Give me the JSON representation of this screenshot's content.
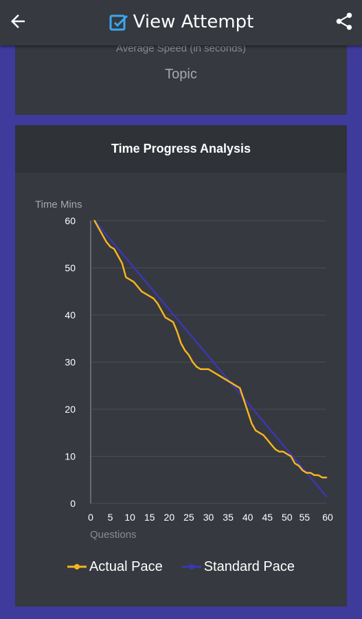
{
  "appbar": {
    "title": "View Attempt",
    "back_icon": "arrow-left-icon",
    "title_icon": "edit-square-icon",
    "share_icon": "share-icon"
  },
  "summary_card": {
    "avg_speed_label": "Average Speed (in seconds)",
    "topic_label": "Topic"
  },
  "chart_card": {
    "title": "Time Progress Analysis"
  },
  "colors": {
    "actual": "#f5b51f",
    "standard": "#3b37b0",
    "title_icon": "#3aa8f0"
  },
  "chart_data": {
    "type": "line",
    "title": "Time Progress Analysis",
    "xlabel": "Questions",
    "ylabel": "Time Mins",
    "xlim": [
      0,
      60
    ],
    "ylim": [
      0,
      60
    ],
    "x_ticks": [
      0,
      5,
      10,
      15,
      20,
      25,
      30,
      35,
      40,
      45,
      50,
      55,
      60
    ],
    "y_ticks": [
      0,
      10,
      20,
      30,
      40,
      50,
      60
    ],
    "grid": true,
    "legend_position": "bottom",
    "series": [
      {
        "name": "Actual Pace",
        "color": "#f5b51f",
        "x": [
          1,
          2,
          3,
          4,
          5,
          6,
          7,
          8,
          9,
          10,
          11,
          12,
          13,
          14,
          15,
          16,
          17,
          18,
          19,
          20,
          21,
          22,
          23,
          24,
          25,
          26,
          27,
          28,
          29,
          30,
          31,
          32,
          33,
          34,
          35,
          36,
          37,
          38,
          39,
          40,
          41,
          42,
          43,
          44,
          45,
          46,
          47,
          48,
          49,
          50,
          51,
          52,
          53,
          54,
          55,
          56,
          57,
          58,
          59,
          60
        ],
        "y": [
          60,
          58.5,
          57,
          55.5,
          54.5,
          54,
          52.5,
          51,
          48,
          47.5,
          47,
          46,
          45,
          44.5,
          44,
          43.5,
          42.5,
          41,
          39.5,
          39,
          38.5,
          36.5,
          34,
          32.5,
          31.5,
          30,
          29,
          28.5,
          28.5,
          28.5,
          28,
          27.5,
          27,
          26.5,
          26,
          25.5,
          25,
          24.5,
          22,
          19.5,
          17,
          15.5,
          15,
          14.5,
          13.5,
          12.5,
          11.5,
          11,
          11,
          10.5,
          10,
          8.5,
          8,
          7,
          6.5,
          6.5,
          6,
          6,
          5.5,
          5.5
        ]
      },
      {
        "name": "Standard Pace",
        "color": "#3b37b0",
        "x": [
          1,
          60
        ],
        "y": [
          60,
          1.5
        ]
      }
    ]
  }
}
